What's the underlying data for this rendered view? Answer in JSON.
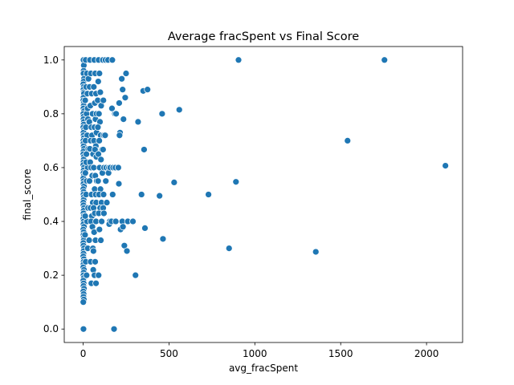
{
  "chart_data": {
    "type": "scatter",
    "title": "Average fracSpent vs Final Score",
    "xlabel": "avg_fracSpent",
    "ylabel": "final_score",
    "xlim": [
      -110,
      2210
    ],
    "ylim": [
      -0.05,
      1.05
    ],
    "xticks": [
      0,
      500,
      1000,
      1500,
      2000
    ],
    "yticks": [
      0.0,
      0.2,
      0.4,
      0.6,
      0.8,
      1.0
    ],
    "xtick_labels": [
      "0",
      "500",
      "1000",
      "1500",
      "2000"
    ],
    "ytick_labels": [
      "0.0",
      "0.2",
      "0.4",
      "0.6",
      "0.8",
      "1.0"
    ],
    "grid": false,
    "point_color": "#1f77b4",
    "points": [
      [
        2,
        1.0
      ],
      [
        4,
        0.98
      ],
      [
        3,
        0.96
      ],
      [
        2,
        0.95
      ],
      [
        5,
        0.93
      ],
      [
        3,
        0.92
      ],
      [
        1,
        0.91
      ],
      [
        4,
        0.9
      ],
      [
        2,
        0.89
      ],
      [
        3,
        0.88
      ],
      [
        5,
        0.875
      ],
      [
        2,
        0.86
      ],
      [
        1,
        0.85
      ],
      [
        4,
        0.84
      ],
      [
        3,
        0.83
      ],
      [
        2,
        0.82
      ],
      [
        5,
        0.81
      ],
      [
        1,
        0.8
      ],
      [
        3,
        0.79
      ],
      [
        2,
        0.78
      ],
      [
        4,
        0.77
      ],
      [
        3,
        0.76
      ],
      [
        1,
        0.75
      ],
      [
        5,
        0.74
      ],
      [
        2,
        0.73
      ],
      [
        3,
        0.72
      ],
      [
        4,
        0.71
      ],
      [
        1,
        0.7
      ],
      [
        2,
        0.69
      ],
      [
        3,
        0.68
      ],
      [
        5,
        0.67
      ],
      [
        2,
        0.66
      ],
      [
        1,
        0.65
      ],
      [
        4,
        0.64
      ],
      [
        3,
        0.63
      ],
      [
        2,
        0.62
      ],
      [
        1,
        0.61
      ],
      [
        5,
        0.6
      ],
      [
        3,
        0.59
      ],
      [
        2,
        0.58
      ],
      [
        4,
        0.57
      ],
      [
        1,
        0.56
      ],
      [
        3,
        0.55
      ],
      [
        2,
        0.54
      ],
      [
        5,
        0.53
      ],
      [
        1,
        0.52
      ],
      [
        3,
        0.51
      ],
      [
        2,
        0.5
      ],
      [
        4,
        0.49
      ],
      [
        3,
        0.48
      ],
      [
        1,
        0.47
      ],
      [
        2,
        0.46
      ],
      [
        5,
        0.45
      ],
      [
        3,
        0.44
      ],
      [
        2,
        0.43
      ],
      [
        4,
        0.42
      ],
      [
        1,
        0.41
      ],
      [
        3,
        0.4
      ],
      [
        2,
        0.39
      ],
      [
        5,
        0.38
      ],
      [
        1,
        0.37
      ],
      [
        3,
        0.36
      ],
      [
        2,
        0.35
      ],
      [
        4,
        0.34
      ],
      [
        3,
        0.33
      ],
      [
        1,
        0.32
      ],
      [
        2,
        0.31
      ],
      [
        5,
        0.3
      ],
      [
        3,
        0.29
      ],
      [
        2,
        0.28
      ],
      [
        1,
        0.27
      ],
      [
        4,
        0.26
      ],
      [
        3,
        0.25
      ],
      [
        2,
        0.24
      ],
      [
        1,
        0.23
      ],
      [
        5,
        0.22
      ],
      [
        3,
        0.21
      ],
      [
        2,
        0.2
      ],
      [
        4,
        0.19
      ],
      [
        1,
        0.18
      ],
      [
        3,
        0.17
      ],
      [
        2,
        0.16
      ],
      [
        5,
        0.15
      ],
      [
        1,
        0.14
      ],
      [
        3,
        0.13
      ],
      [
        2,
        0.12
      ],
      [
        4,
        0.11
      ],
      [
        1,
        0.1
      ],
      [
        2,
        0.0
      ],
      [
        15,
        1.0
      ],
      [
        22,
        0.95
      ],
      [
        18,
        0.9
      ],
      [
        25,
        0.875
      ],
      [
        12,
        0.85
      ],
      [
        20,
        0.8
      ],
      [
        28,
        0.78
      ],
      [
        16,
        0.75
      ],
      [
        24,
        0.72
      ],
      [
        14,
        0.7
      ],
      [
        30,
        0.67
      ],
      [
        19,
        0.65
      ],
      [
        26,
        0.6
      ],
      [
        13,
        0.58
      ],
      [
        21,
        0.55
      ],
      [
        17,
        0.5
      ],
      [
        29,
        0.45
      ],
      [
        23,
        0.4
      ],
      [
        11,
        0.35
      ],
      [
        27,
        0.3
      ],
      [
        15,
        0.25
      ],
      [
        20,
        0.2
      ],
      [
        12,
        0.42
      ],
      [
        18,
        0.62
      ],
      [
        26,
        0.82
      ],
      [
        31,
        0.93
      ],
      [
        40,
        1.0
      ],
      [
        45,
        0.95
      ],
      [
        38,
        0.9
      ],
      [
        50,
        0.875
      ],
      [
        42,
        0.83
      ],
      [
        55,
        0.8
      ],
      [
        36,
        0.77
      ],
      [
        48,
        0.75
      ],
      [
        52,
        0.72
      ],
      [
        44,
        0.7
      ],
      [
        39,
        0.67
      ],
      [
        58,
        0.65
      ],
      [
        41,
        0.62
      ],
      [
        47,
        0.6
      ],
      [
        53,
        0.57
      ],
      [
        37,
        0.55
      ],
      [
        49,
        0.5
      ],
      [
        56,
        0.47
      ],
      [
        43,
        0.45
      ],
      [
        51,
        0.42
      ],
      [
        46,
        0.4
      ],
      [
        54,
        0.38
      ],
      [
        35,
        0.33
      ],
      [
        57,
        0.3
      ],
      [
        44,
        0.25
      ],
      [
        59,
        0.22
      ],
      [
        48,
        0.17
      ],
      [
        65,
        1.0
      ],
      [
        70,
        0.95
      ],
      [
        62,
        0.9
      ],
      [
        75,
        0.875
      ],
      [
        68,
        0.84
      ],
      [
        80,
        0.8
      ],
      [
        72,
        0.78
      ],
      [
        66,
        0.75
      ],
      [
        78,
        0.73
      ],
      [
        63,
        0.7
      ],
      [
        74,
        0.68
      ],
      [
        69,
        0.667
      ],
      [
        77,
        0.64
      ],
      [
        64,
        0.6
      ],
      [
        71,
        0.57
      ],
      [
        79,
        0.55
      ],
      [
        67,
        0.52
      ],
      [
        73,
        0.5
      ],
      [
        76,
        0.47
      ],
      [
        61,
        0.45
      ],
      [
        68,
        0.43
      ],
      [
        75,
        0.4
      ],
      [
        64,
        0.36
      ],
      [
        72,
        0.33
      ],
      [
        60,
        0.29
      ],
      [
        70,
        0.25
      ],
      [
        66,
        0.2
      ],
      [
        75,
        0.17
      ],
      [
        62,
        0.6
      ],
      [
        78,
        0.8
      ],
      [
        90,
        1.0
      ],
      [
        95,
        0.95
      ],
      [
        88,
        0.92
      ],
      [
        100,
        0.88
      ],
      [
        85,
        0.85
      ],
      [
        105,
        0.83
      ],
      [
        92,
        0.8
      ],
      [
        98,
        0.77
      ],
      [
        86,
        0.75
      ],
      [
        102,
        0.72
      ],
      [
        94,
        0.7
      ],
      [
        110,
        0.667
      ],
      [
        89,
        0.65
      ],
      [
        104,
        0.63
      ],
      [
        96,
        0.6
      ],
      [
        112,
        0.58
      ],
      [
        87,
        0.55
      ],
      [
        101,
        0.52
      ],
      [
        93,
        0.5
      ],
      [
        107,
        0.47
      ],
      [
        99,
        0.45
      ],
      [
        91,
        0.43
      ],
      [
        108,
        0.4
      ],
      [
        95,
        0.37
      ],
      [
        103,
        0.33
      ],
      [
        90,
        0.2
      ],
      [
        115,
        1.0
      ],
      [
        118,
        0.85
      ],
      [
        120,
        0.72
      ],
      [
        116,
        0.667
      ],
      [
        122,
        0.6
      ],
      [
        119,
        0.5
      ],
      [
        117,
        0.45
      ],
      [
        121,
        0.43
      ],
      [
        130,
        1.0
      ],
      [
        128,
        0.72
      ],
      [
        135,
        0.6
      ],
      [
        132,
        0.55
      ],
      [
        138,
        0.47
      ],
      [
        145,
        1.0
      ],
      [
        150,
        0.6
      ],
      [
        148,
        0.58
      ],
      [
        155,
        0.4
      ],
      [
        152,
        0.39
      ],
      [
        158,
        0.6
      ],
      [
        170,
        1.0
      ],
      [
        168,
        0.82
      ],
      [
        175,
        0.6
      ],
      [
        172,
        0.5
      ],
      [
        178,
        0.4
      ],
      [
        165,
        0.4
      ],
      [
        185,
        0.8
      ],
      [
        188,
        0.6
      ],
      [
        190,
        0.4
      ],
      [
        192,
        0.8
      ],
      [
        180,
        0.0
      ],
      [
        205,
        0.6
      ],
      [
        210,
        0.84
      ],
      [
        215,
        0.73
      ],
      [
        212,
        0.72
      ],
      [
        208,
        0.54
      ],
      [
        218,
        0.37
      ],
      [
        225,
        0.93
      ],
      [
        230,
        0.89
      ],
      [
        235,
        0.78
      ],
      [
        228,
        0.4
      ],
      [
        232,
        0.38
      ],
      [
        240,
        0.31
      ],
      [
        250,
        0.95
      ],
      [
        245,
        0.86
      ],
      [
        260,
        0.4
      ],
      [
        255,
        0.29
      ],
      [
        290,
        0.4
      ],
      [
        305,
        0.2
      ],
      [
        320,
        0.77
      ],
      [
        340,
        0.5
      ],
      [
        350,
        0.885
      ],
      [
        355,
        0.667
      ],
      [
        360,
        0.375
      ],
      [
        375,
        0.89
      ],
      [
        445,
        0.495
      ],
      [
        460,
        0.8
      ],
      [
        465,
        0.335
      ],
      [
        530,
        0.545
      ],
      [
        560,
        0.815
      ],
      [
        730,
        0.5
      ],
      [
        850,
        0.3
      ],
      [
        890,
        0.547
      ],
      [
        905,
        1.0
      ],
      [
        1355,
        0.287
      ],
      [
        1540,
        0.7
      ],
      [
        1755,
        1.0
      ],
      [
        2110,
        0.607
      ]
    ]
  }
}
